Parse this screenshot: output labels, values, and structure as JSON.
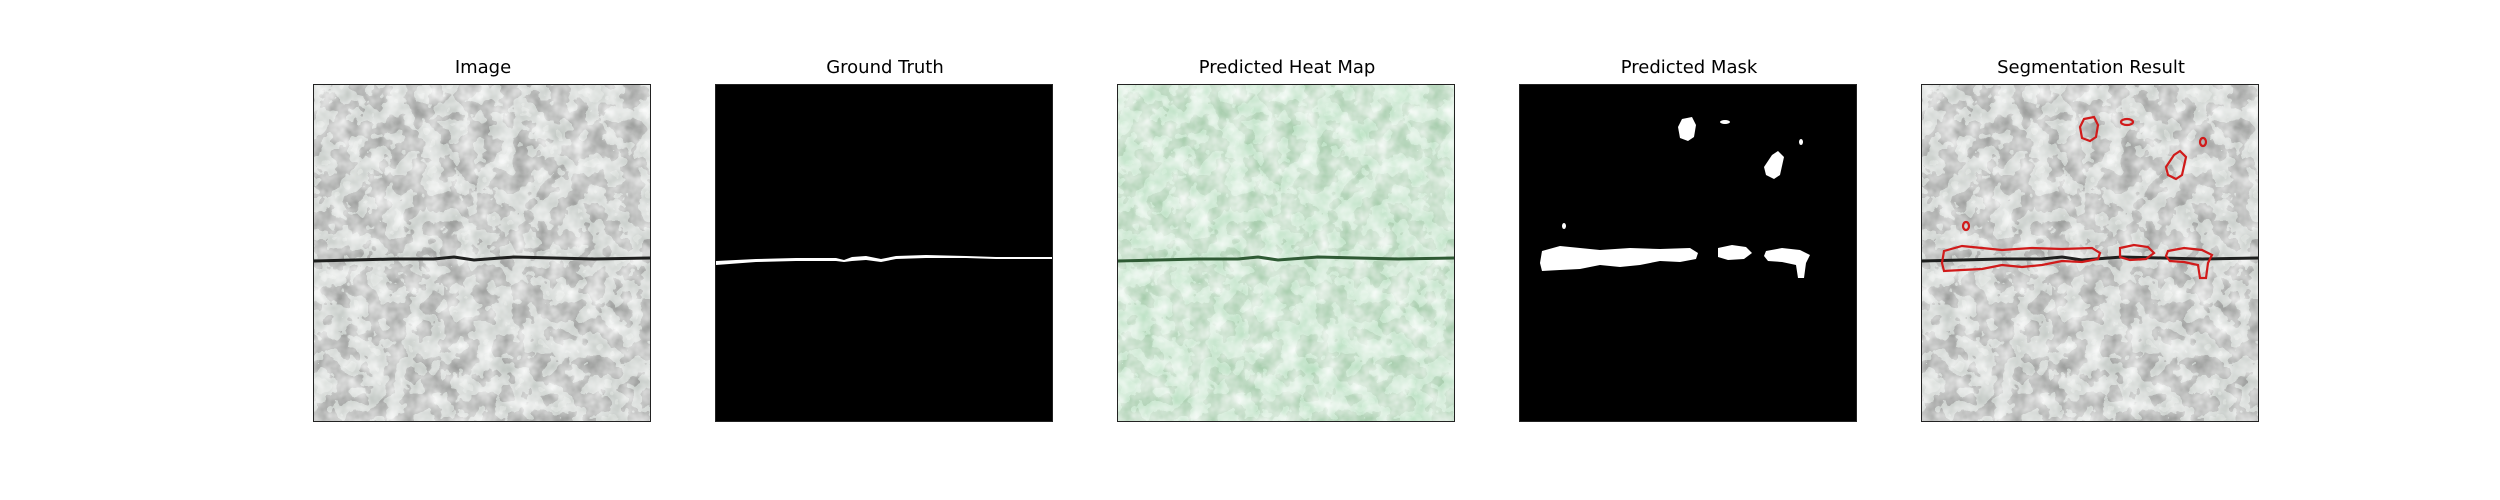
{
  "figure": {
    "panels": [
      {
        "key": "image",
        "title": "Image"
      },
      {
        "key": "ground_truth",
        "title": "Ground Truth"
      },
      {
        "key": "heat_map",
        "title": "Predicted Heat Map"
      },
      {
        "key": "mask",
        "title": "Predicted Mask"
      },
      {
        "key": "segmentation",
        "title": "Segmentation Result"
      }
    ]
  },
  "colors": {
    "texture_light": "#9aa39c",
    "texture_dark": "#3d403d",
    "heat_light": "#7fc38a",
    "heat_dark": "#4c8a55",
    "mask_fg": "#ffffff",
    "mask_bg": "#000000",
    "contour": "#d11a1a",
    "crack": "#1e1f1e"
  }
}
